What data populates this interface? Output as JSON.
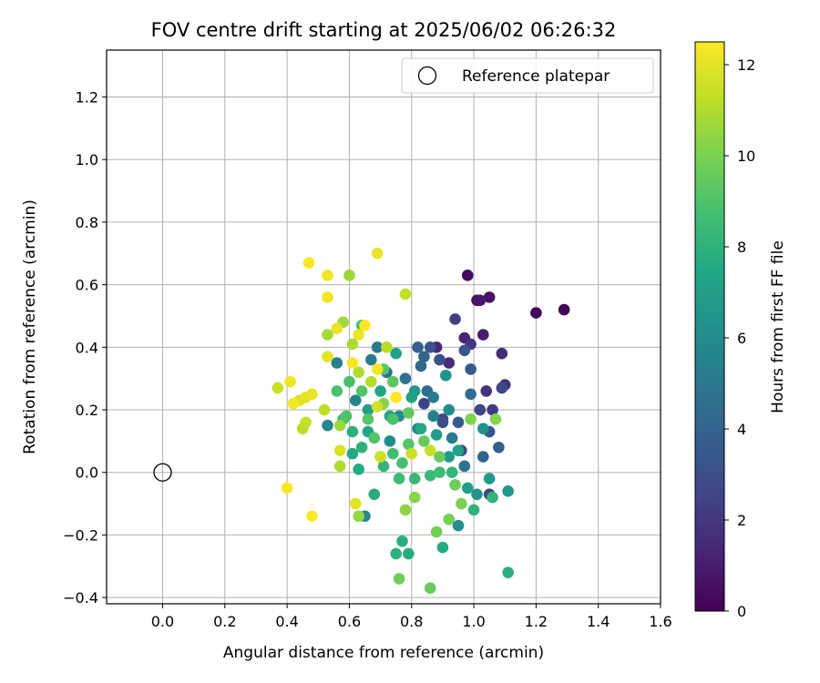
{
  "chart_data": {
    "type": "scatter",
    "title": "FOV centre drift starting at 2025/06/02 06:26:32",
    "xlabel": "Angular distance from reference (arcmin)",
    "ylabel": "Rotation from reference (arcmin)",
    "xlim": [
      -0.18,
      1.6
    ],
    "ylim": [
      -0.42,
      1.35
    ],
    "xticks": [
      "0.0",
      "0.2",
      "0.4",
      "0.6",
      "0.8",
      "1.0",
      "1.2",
      "1.4",
      "1.6"
    ],
    "yticks": [
      "−0.4",
      "−0.2",
      "0.0",
      "0.2",
      "0.4",
      "0.6",
      "0.8",
      "1.0",
      "1.2"
    ],
    "grid": true,
    "legend": {
      "placement": "top-right",
      "entries": [
        "Reference platepar"
      ]
    },
    "reference_point": {
      "x": 0.0,
      "y": 0.0
    },
    "colorbar": {
      "label": "Hours from first FF file",
      "range": [
        0,
        12.5
      ],
      "ticks": [
        "0",
        "2",
        "4",
        "6",
        "8",
        "10",
        "12"
      ],
      "colormap": "viridis"
    },
    "series": [
      {
        "points": [
          [
            0.98,
            0.63,
            0.3
          ],
          [
            1.29,
            0.52,
            0.1
          ],
          [
            1.2,
            0.51,
            0.2
          ],
          [
            1.01,
            0.55,
            0.5
          ],
          [
            1.05,
            0.56,
            0.6
          ],
          [
            1.02,
            0.55,
            0.8
          ],
          [
            1.03,
            0.44,
            1.0
          ],
          [
            0.97,
            0.43,
            1.2
          ],
          [
            0.88,
            0.4,
            1.4
          ],
          [
            0.92,
            0.35,
            1.5
          ],
          [
            1.09,
            0.38,
            1.6
          ],
          [
            1.1,
            0.28,
            1.7
          ],
          [
            1.04,
            0.26,
            1.8
          ],
          [
            0.99,
            0.41,
            2.0
          ],
          [
            0.94,
            0.49,
            2.3
          ],
          [
            1.06,
            0.2,
            2.2
          ],
          [
            0.84,
            0.22,
            2.4
          ],
          [
            0.9,
            0.17,
            2.6
          ],
          [
            1.09,
            0.27,
            2.7
          ],
          [
            0.96,
            0.07,
            2.8
          ],
          [
            1.05,
            -0.07,
            2.5
          ],
          [
            0.89,
            0.36,
            2.9
          ],
          [
            0.86,
            0.4,
            3.1
          ],
          [
            0.97,
            0.39,
            3.3
          ],
          [
            0.99,
            0.33,
            3.5
          ],
          [
            1.05,
            0.13,
            3.4
          ],
          [
            0.95,
            0.16,
            3.6
          ],
          [
            1.08,
            0.08,
            3.8
          ],
          [
            1.03,
            0.05,
            4.0
          ],
          [
            0.83,
            0.34,
            4.2
          ],
          [
            0.85,
            0.26,
            4.4
          ],
          [
            0.78,
            0.3,
            4.6
          ],
          [
            0.72,
            0.32,
            4.8
          ],
          [
            0.69,
            0.4,
            5.0
          ],
          [
            0.67,
            0.36,
            5.2
          ],
          [
            0.56,
            0.35,
            5.4
          ],
          [
            0.62,
            0.23,
            5.6
          ],
          [
            0.53,
            0.15,
            5.7
          ],
          [
            0.65,
            -0.14,
            5.8
          ],
          [
            0.76,
            0.18,
            5.9
          ],
          [
            0.82,
            0.14,
            6.0
          ],
          [
            0.92,
            0.2,
            6.0
          ],
          [
            0.95,
            -0.17,
            6.2
          ],
          [
            0.91,
            0.31,
            6.4
          ],
          [
            1.11,
            -0.06,
            6.6
          ],
          [
            1.05,
            -0.02,
            6.8
          ],
          [
            0.98,
            -0.05,
            7.0
          ],
          [
            1.01,
            -0.07,
            6.5
          ],
          [
            0.88,
            0.12,
            6.9
          ],
          [
            0.8,
            0.24,
            7.0
          ],
          [
            0.75,
            0.38,
            7.1
          ],
          [
            0.7,
            0.26,
            7.2
          ],
          [
            0.73,
            0.18,
            7.3
          ],
          [
            0.66,
            0.13,
            7.4
          ],
          [
            0.61,
            0.06,
            7.5
          ],
          [
            0.63,
            0.01,
            7.6
          ],
          [
            0.68,
            -0.07,
            7.7
          ],
          [
            0.77,
            -0.22,
            7.8
          ],
          [
            0.75,
            -0.26,
            7.9
          ],
          [
            0.79,
            -0.26,
            7.7
          ],
          [
            0.9,
            -0.24,
            7.6
          ],
          [
            1.11,
            -0.32,
            7.8
          ],
          [
            1.0,
            -0.12,
            8.0
          ],
          [
            1.06,
            -0.08,
            8.1
          ],
          [
            0.93,
            0.0,
            8.2
          ],
          [
            0.86,
            -0.01,
            8.3
          ],
          [
            0.81,
            -0.02,
            8.4
          ],
          [
            0.76,
            -0.02,
            8.5
          ],
          [
            0.7,
            0.05,
            8.6
          ],
          [
            0.64,
            0.47,
            8.7
          ],
          [
            0.6,
            0.29,
            8.8
          ],
          [
            0.56,
            0.26,
            8.9
          ],
          [
            0.59,
            0.18,
            9.0
          ],
          [
            0.64,
            0.26,
            9.1
          ],
          [
            0.71,
            0.33,
            9.2
          ],
          [
            0.74,
            0.29,
            9.3
          ],
          [
            0.79,
            0.19,
            9.4
          ],
          [
            0.84,
            0.1,
            9.5
          ],
          [
            0.89,
            0.05,
            9.6
          ],
          [
            0.94,
            -0.04,
            9.7
          ],
          [
            0.88,
            -0.19,
            9.8
          ],
          [
            0.92,
            -0.15,
            9.9
          ],
          [
            0.96,
            -0.1,
            10.0
          ],
          [
            0.99,
            0.17,
            10.1
          ],
          [
            1.07,
            0.17,
            10.2
          ],
          [
            0.81,
            -0.08,
            10.3
          ],
          [
            0.78,
            -0.12,
            10.4
          ],
          [
            0.63,
            -0.14,
            10.5
          ],
          [
            0.57,
            0.15,
            10.6
          ],
          [
            0.6,
            0.63,
            10.6
          ],
          [
            0.58,
            0.48,
            10.7
          ],
          [
            0.53,
            0.44,
            10.8
          ],
          [
            0.61,
            0.41,
            10.9
          ],
          [
            0.63,
            0.32,
            11.0
          ],
          [
            0.67,
            0.29,
            11.1
          ],
          [
            0.72,
            0.4,
            11.2
          ],
          [
            0.78,
            0.57,
            11.3
          ],
          [
            0.86,
            0.07,
            11.4
          ],
          [
            0.8,
            0.06,
            11.5
          ],
          [
            0.7,
            0.05,
            11.6
          ],
          [
            0.69,
            0.21,
            11.7
          ],
          [
            0.57,
            0.07,
            11.8
          ],
          [
            0.57,
            0.02,
            11.0
          ],
          [
            0.52,
            0.2,
            11.3
          ],
          [
            0.45,
            0.14,
            11.2
          ],
          [
            0.46,
            0.16,
            11.4
          ],
          [
            0.37,
            0.27,
            11.5
          ],
          [
            0.44,
            0.23,
            11.8
          ],
          [
            0.46,
            0.24,
            12.0
          ],
          [
            0.48,
            0.25,
            12.1
          ],
          [
            0.41,
            0.29,
            12.2
          ],
          [
            0.42,
            0.22,
            12.3
          ],
          [
            0.4,
            -0.05,
            12.4
          ],
          [
            0.48,
            -0.14,
            12.5
          ],
          [
            0.47,
            0.67,
            12.4
          ],
          [
            0.53,
            0.63,
            12.2
          ],
          [
            0.53,
            0.56,
            12.3
          ],
          [
            0.69,
            0.7,
            12.1
          ],
          [
            0.65,
            0.47,
            12.5
          ],
          [
            0.63,
            0.44,
            12.2
          ],
          [
            0.53,
            0.37,
            12.0
          ],
          [
            0.61,
            0.35,
            12.4
          ],
          [
            0.69,
            0.33,
            12.3
          ],
          [
            0.75,
            0.24,
            12.5
          ],
          [
            0.56,
            0.46,
            12.1
          ],
          [
            0.86,
            -0.37,
            9.6
          ],
          [
            0.76,
            -0.34,
            9.8
          ],
          [
            0.62,
            -0.1,
            11.9
          ],
          [
            0.84,
            0.37,
            4.1
          ],
          [
            0.9,
            0.16,
            3.0
          ],
          [
            0.82,
            0.4,
            3.9
          ],
          [
            0.93,
            0.11,
            5.3
          ],
          [
            1.03,
            0.14,
            6.3
          ],
          [
            0.73,
            0.1,
            6.1
          ],
          [
            0.66,
            0.2,
            7.0
          ],
          [
            0.87,
            0.24,
            5.1
          ],
          [
            0.81,
            0.26,
            6.7
          ],
          [
            0.74,
            0.06,
            8.7
          ],
          [
            0.68,
            0.11,
            9.0
          ],
          [
            0.71,
            0.02,
            8.2
          ],
          [
            0.77,
            0.03,
            8.8
          ],
          [
            0.83,
            0.14,
            7.5
          ],
          [
            0.95,
            0.07,
            7.1
          ],
          [
            0.89,
            0.0,
            8.5
          ],
          [
            0.61,
            0.13,
            7.9
          ],
          [
            0.64,
            0.08,
            8.0
          ],
          [
            0.58,
            0.17,
            8.3
          ],
          [
            0.66,
            0.17,
            9.2
          ],
          [
            0.71,
            0.22,
            10.2
          ],
          [
            0.74,
            0.17,
            8.9
          ],
          [
            0.79,
            0.09,
            9.1
          ],
          [
            0.87,
            0.18,
            5.5
          ],
          [
            0.92,
            0.05,
            6.7
          ],
          [
            0.97,
            0.02,
            4.8
          ],
          [
            1.02,
            0.2,
            2.6
          ],
          [
            0.99,
            0.25,
            4.5
          ]
        ]
      }
    ]
  }
}
